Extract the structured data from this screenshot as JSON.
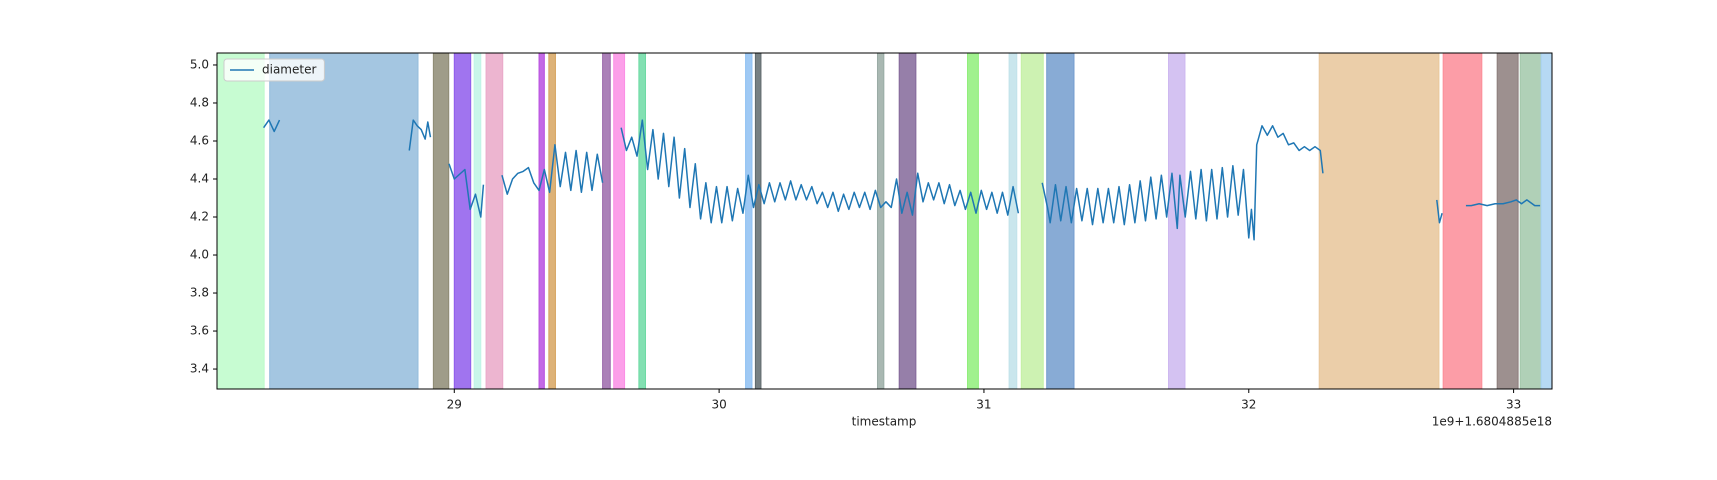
{
  "chart_data": {
    "type": "line",
    "xlabel": "timestamp",
    "x_offset_label": "1e9+1.6804885e18",
    "xlim": [
      28.104,
      33.145
    ],
    "xticks": [
      29,
      30,
      31,
      32,
      33
    ],
    "ylim": [
      3.295,
      5.063
    ],
    "yticks": [
      3.4,
      3.6,
      3.8,
      {
        "value": 4,
        "label": "4.0"
      },
      4.2,
      4.4,
      4.6,
      4.8,
      {
        "value": 5,
        "label": "5.0"
      }
    ],
    "legend": "upper left",
    "spans": [
      {
        "x": [
          28.104,
          28.282
        ],
        "color": "#bdfbca"
      },
      {
        "x": [
          28.303,
          28.863
        ],
        "color": "#94bcdc"
      },
      {
        "x": [
          28.921,
          28.979
        ],
        "color": "#8e8b74"
      },
      {
        "x": [
          29.0,
          29.062
        ],
        "color": "#8f5cec"
      },
      {
        "x": [
          29.075,
          29.1
        ],
        "color": "#c0f5e6"
      },
      {
        "x": [
          29.12,
          29.183
        ],
        "color": "#eaa8c8"
      },
      {
        "x": [
          29.32,
          29.34
        ],
        "color": "#b84fe0"
      },
      {
        "x": [
          29.357,
          29.382
        ],
        "color": "#d7a560"
      },
      {
        "x": [
          29.56,
          29.589
        ],
        "color": "#9c6aac"
      },
      {
        "x": [
          29.602,
          29.643
        ],
        "color": "#fb8ee5"
      },
      {
        "x": [
          29.697,
          29.722
        ],
        "color": "#6ddaa4"
      },
      {
        "x": [
          30.1,
          30.124
        ],
        "color": "#8ec0f2"
      },
      {
        "x": [
          30.137,
          30.158
        ],
        "color": "#5f6a6d"
      },
      {
        "x": [
          30.598,
          30.622
        ],
        "color": "#9aaba5"
      },
      {
        "x": [
          30.68,
          30.743
        ],
        "color": "#84689a"
      },
      {
        "x": [
          30.938,
          30.979
        ],
        "color": "#8fee7a"
      },
      {
        "x": [
          31.095,
          31.124
        ],
        "color": "#c1e2ea"
      },
      {
        "x": [
          31.141,
          31.224
        ],
        "color": "#c4f0a4"
      },
      {
        "x": [
          31.237,
          31.34
        ],
        "color": "#739cce"
      },
      {
        "x": [
          31.697,
          31.759
        ],
        "color": "#cdb7f0"
      },
      {
        "x": [
          32.266,
          32.718
        ],
        "color": "#e8c69a"
      },
      {
        "x": [
          32.734,
          32.88
        ],
        "color": "#fb8c98"
      },
      {
        "x": [
          32.938,
          33.017
        ],
        "color": "#8c7d7b"
      },
      {
        "x": [
          33.025,
          33.104
        ],
        "color": "#a2c8aa"
      },
      {
        "x": [
          33.104,
          33.145
        ],
        "color": "#a9d2f2"
      }
    ],
    "x": [
      28.28,
      28.3,
      28.32,
      28.34,
      null,
      28.83,
      28.845,
      28.86,
      28.875,
      28.89,
      28.9,
      28.91,
      null,
      28.98,
      29.0,
      29.04,
      29.06,
      29.08,
      29.1,
      29.11,
      null,
      29.18,
      29.2,
      29.22,
      29.24,
      29.26,
      29.28,
      29.3,
      29.32,
      29.34,
      29.36,
      29.38,
      29.4,
      29.42,
      29.44,
      29.46,
      29.48,
      29.5,
      29.52,
      29.54,
      29.56,
      null,
      29.63,
      29.65,
      29.67,
      29.69,
      29.71,
      29.73,
      29.75,
      29.77,
      29.79,
      29.81,
      29.83,
      29.85,
      29.87,
      29.89,
      29.91,
      29.93,
      29.95,
      29.97,
      29.99,
      30.01,
      30.03,
      30.05,
      30.07,
      30.09,
      30.11,
      30.13,
      30.15,
      30.17,
      30.19,
      30.21,
      30.23,
      30.25,
      30.27,
      30.29,
      30.31,
      30.33,
      30.35,
      30.37,
      30.39,
      30.41,
      30.43,
      30.45,
      30.47,
      30.49,
      30.51,
      30.53,
      30.55,
      30.57,
      30.59,
      30.61,
      30.63,
      30.65,
      30.67,
      30.69,
      30.71,
      30.73,
      30.75,
      30.77,
      30.79,
      30.81,
      30.83,
      30.85,
      30.87,
      30.89,
      30.91,
      30.93,
      30.95,
      30.97,
      30.99,
      31.01,
      31.03,
      31.05,
      31.07,
      31.09,
      31.11,
      31.13,
      null,
      31.22,
      31.24,
      31.25,
      31.27,
      31.29,
      31.31,
      31.33,
      31.35,
      31.37,
      31.39,
      31.41,
      31.43,
      31.45,
      31.47,
      31.49,
      31.51,
      31.53,
      31.55,
      31.57,
      31.59,
      31.61,
      31.63,
      31.65,
      31.67,
      31.69,
      31.71,
      31.73,
      31.74,
      31.76,
      31.78,
      31.8,
      31.82,
      31.84,
      31.86,
      31.88,
      31.9,
      31.92,
      31.94,
      31.96,
      31.98,
      32.0,
      32.01,
      32.02,
      32.03,
      32.05,
      32.07,
      32.09,
      32.11,
      32.13,
      32.15,
      32.17,
      32.19,
      32.21,
      32.23,
      32.25,
      32.27,
      32.28,
      null,
      32.71,
      32.72,
      32.73,
      null,
      32.82,
      32.84,
      32.87,
      32.9,
      32.93,
      32.96,
      32.99,
      33.01,
      33.03,
      33.05,
      33.08,
      33.1
    ],
    "series": [
      {
        "name": "diameter",
        "color": "#1f77b4",
        "values": [
          4.67,
          4.71,
          4.65,
          4.71,
          null,
          4.55,
          4.71,
          4.68,
          4.66,
          4.61,
          4.7,
          4.62,
          null,
          4.48,
          4.4,
          4.45,
          4.24,
          4.32,
          4.2,
          4.37,
          null,
          4.42,
          4.32,
          4.4,
          4.43,
          4.44,
          4.46,
          4.38,
          4.34,
          4.45,
          4.33,
          4.58,
          4.36,
          4.54,
          4.34,
          4.55,
          4.33,
          4.54,
          4.34,
          4.53,
          4.38,
          null,
          4.67,
          4.55,
          4.62,
          4.52,
          4.71,
          4.45,
          4.66,
          4.4,
          4.64,
          4.36,
          4.62,
          4.3,
          4.56,
          4.25,
          4.48,
          4.19,
          4.38,
          4.17,
          4.36,
          4.17,
          4.36,
          4.18,
          4.35,
          4.22,
          4.42,
          4.25,
          4.37,
          4.27,
          4.38,
          4.28,
          4.38,
          4.29,
          4.39,
          4.29,
          4.37,
          4.29,
          4.36,
          4.27,
          4.33,
          4.25,
          4.33,
          4.23,
          4.32,
          4.24,
          4.33,
          4.25,
          4.33,
          4.24,
          4.34,
          4.25,
          4.28,
          4.25,
          4.4,
          4.22,
          4.33,
          4.21,
          4.43,
          4.28,
          4.38,
          4.29,
          4.38,
          4.27,
          4.37,
          4.26,
          4.34,
          4.24,
          4.33,
          4.22,
          4.34,
          4.24,
          4.33,
          4.22,
          4.33,
          4.21,
          4.36,
          4.22,
          null,
          4.38,
          4.25,
          4.17,
          4.37,
          4.18,
          4.36,
          4.17,
          4.35,
          4.18,
          4.35,
          4.16,
          4.35,
          4.17,
          4.35,
          4.17,
          4.36,
          4.16,
          4.37,
          4.17,
          4.39,
          4.18,
          4.41,
          4.19,
          4.42,
          4.2,
          4.43,
          4.14,
          4.42,
          4.2,
          4.44,
          4.19,
          4.45,
          4.18,
          4.45,
          4.19,
          4.46,
          4.2,
          4.47,
          4.21,
          4.45,
          4.09,
          4.24,
          4.08,
          4.58,
          4.68,
          4.63,
          4.68,
          4.62,
          4.64,
          4.58,
          4.59,
          4.55,
          4.57,
          4.55,
          4.57,
          4.55,
          4.43,
          null,
          4.29,
          4.17,
          4.22,
          null,
          4.26,
          4.26,
          4.27,
          4.26,
          4.27,
          4.27,
          4.28,
          4.29,
          4.27,
          4.29,
          4.26,
          4.26
        ]
      }
    ]
  }
}
